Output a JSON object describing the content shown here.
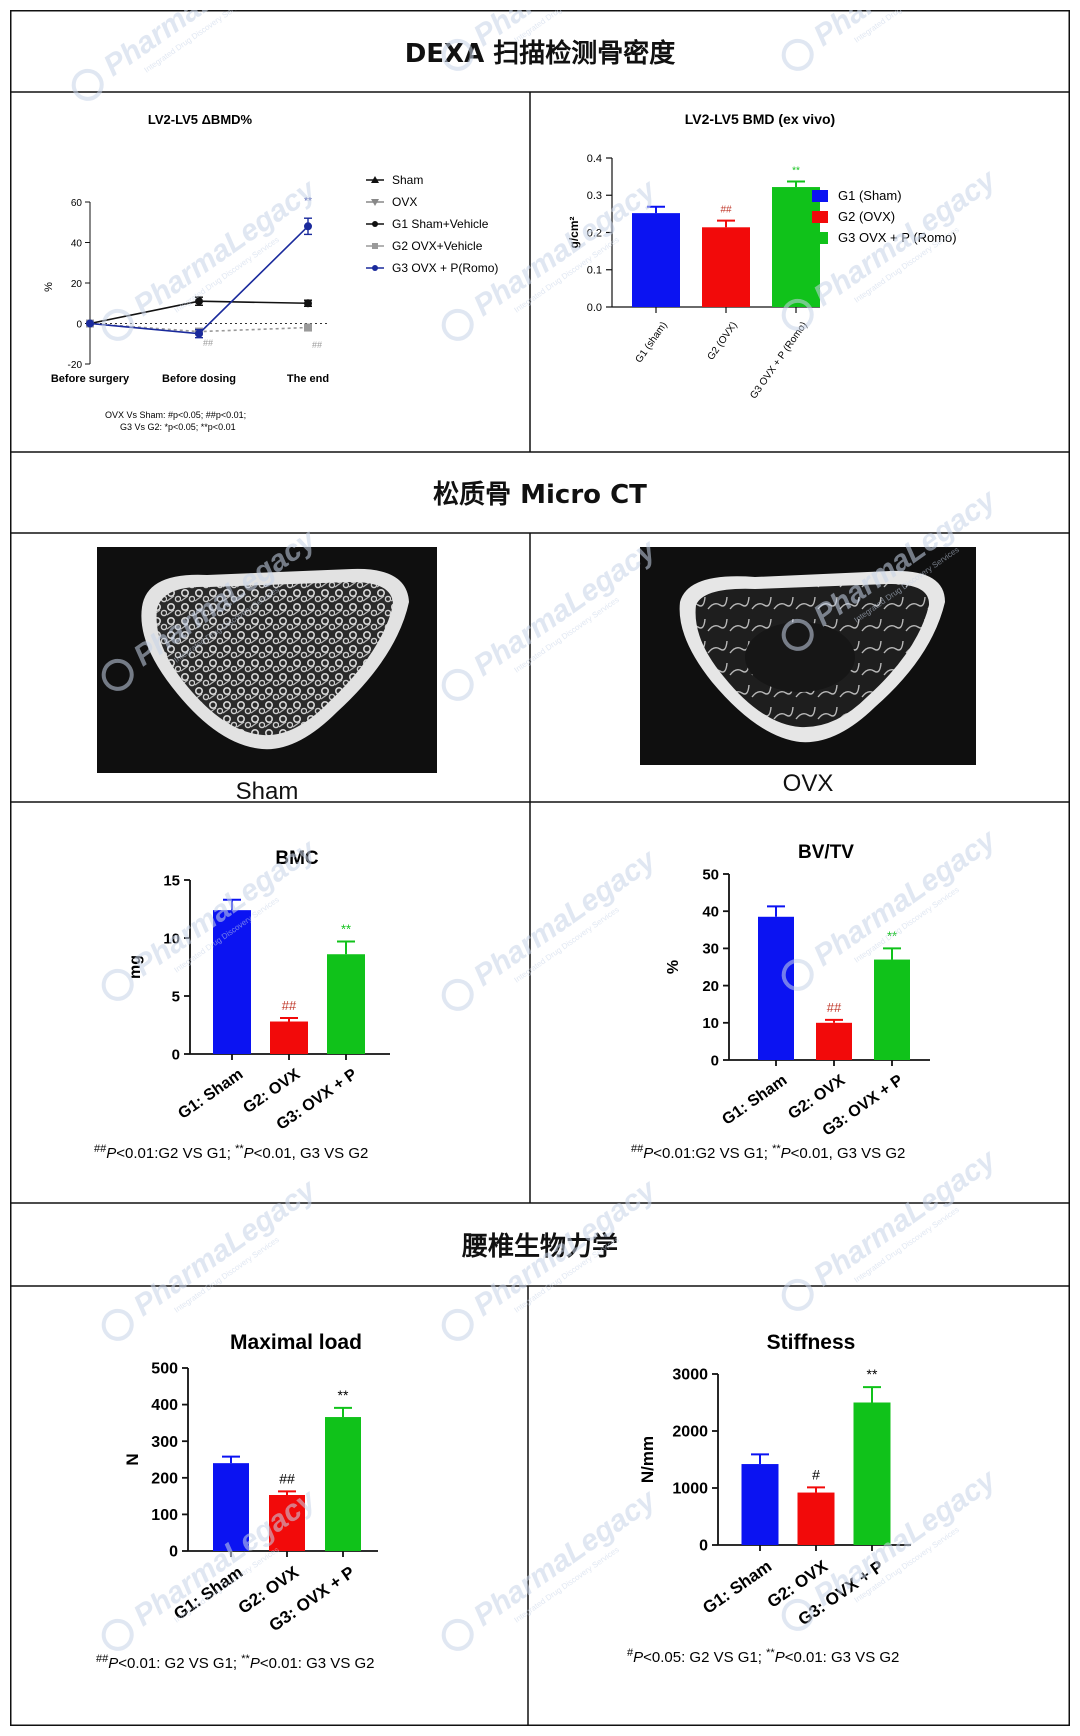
{
  "sections": {
    "dexa_title": "DEXA 扫描检测骨密度",
    "microct_title": "松质骨 Micro CT",
    "biomech_title": "腰椎生物力学"
  },
  "watermark": {
    "text": "PharmaLegacy",
    "sub": "Integrated Drug Discovery Services",
    "color": "#c8d4e8"
  },
  "microct": {
    "left_label": "Sham",
    "right_label": "OVX"
  },
  "chart_data": [
    {
      "id": "lv_delta",
      "type": "line",
      "title": "LV2-LV5 ΔBMD%",
      "ylabel": "%",
      "ylim": [
        -20,
        60
      ],
      "yticks": [
        -20,
        0,
        20,
        40,
        60
      ],
      "categories": [
        "Before surgery",
        "Before dosing",
        "The end"
      ],
      "series": [
        {
          "name": "G1 Sham+Vehicle",
          "color": "#111111",
          "marker": "circle",
          "values": [
            0,
            11,
            10
          ],
          "err": [
            0,
            2,
            1.5
          ],
          "dashed": false
        },
        {
          "name": "G2 OVX+Vehicle",
          "color": "#9a9a9a",
          "marker": "square",
          "values": [
            0,
            -4,
            -2
          ],
          "err": [
            0,
            1.5,
            1
          ],
          "dashed": true
        },
        {
          "name": "G3 OVX + P(Romo)",
          "color": "#1a2a9c",
          "marker": "circle",
          "values": [
            0,
            -5,
            48
          ],
          "err": [
            0,
            2,
            4
          ],
          "dashed": false
        }
      ],
      "legend": [
        "Sham",
        "OVX",
        "G1 Sham+Vehicle",
        "G2 OVX+Vehicle",
        "G3 OVX + P(Romo)"
      ],
      "annotations": [
        {
          "text": "**",
          "color": "#1a2a9c"
        },
        {
          "text": "##",
          "color": "#9a9a9a"
        },
        {
          "text": "##",
          "color": "#9a9a9a"
        }
      ],
      "footnote_1": "OVX Vs Sham: #p<0.05;  ##p<0.01;",
      "footnote_2": "G3 Vs G2: *p<0.05;  **p<0.01"
    },
    {
      "id": "lv_bmd",
      "type": "bar",
      "title": "LV2-LV5 BMD (ex vivo)",
      "ylabel": "g/cm²",
      "ylim": [
        0,
        0.4
      ],
      "yticks": [
        "0.0",
        "0.1",
        "0.2",
        "0.3",
        "0.4"
      ],
      "categories": [
        "G1 (sham)",
        "G2 (OVX)",
        "G3 OVX + P (Romo)"
      ],
      "values": [
        0.252,
        0.214,
        0.322
      ],
      "errors": [
        0.017,
        0.018,
        0.015
      ],
      "colors": [
        "#0b13f2",
        "#f20a0a",
        "#10c21a"
      ],
      "labels": [
        "",
        "##",
        "**"
      ],
      "label_colors": [
        "#000000",
        "#c0392b",
        "#10c21a"
      ],
      "legend": [
        "G1 (Sham)",
        "G2 (OVX)",
        "G3 OVX + P (Romo)"
      ]
    },
    {
      "id": "bmc",
      "type": "bar",
      "title": "BMC",
      "ylabel": "mg",
      "ylim": [
        0,
        15
      ],
      "yticks": [
        "0",
        "5",
        "10",
        "15"
      ],
      "categories": [
        "G1: Sham",
        "G2: OVX",
        "G3: OVX + P"
      ],
      "values": [
        12.4,
        2.8,
        8.6
      ],
      "errors": [
        0.9,
        0.3,
        1.1
      ],
      "colors": [
        "#0b13f2",
        "#f20a0a",
        "#10c21a"
      ],
      "labels": [
        "",
        "##",
        "**"
      ],
      "label_colors": [
        "#000000",
        "#c0392b",
        "#10c21a"
      ],
      "footnote": "##P<0.01:G2 VS G1; **P<0.01, G3 VS G2"
    },
    {
      "id": "bvtv",
      "type": "bar",
      "title": "BV/TV",
      "ylabel": "%",
      "ylim": [
        0,
        50
      ],
      "yticks": [
        "0",
        "10",
        "20",
        "30",
        "40",
        "50"
      ],
      "categories": [
        "G1: Sham",
        "G2: OVX",
        "G3: OVX + P"
      ],
      "values": [
        38.5,
        10,
        27
      ],
      "errors": [
        2.8,
        0.8,
        3
      ],
      "colors": [
        "#0b13f2",
        "#f20a0a",
        "#10c21a"
      ],
      "labels": [
        "",
        "##",
        "**"
      ],
      "label_colors": [
        "#000000",
        "#c0392b",
        "#10c21a"
      ],
      "footnote": "##P<0.01:G2 VS G1; **P<0.01, G3 VS G2"
    },
    {
      "id": "maxload",
      "type": "bar",
      "title": "Maximal load",
      "ylabel": "N",
      "ylim": [
        0,
        500
      ],
      "yticks": [
        "0",
        "100",
        "200",
        "300",
        "400",
        "500"
      ],
      "categories": [
        "G1: Sham",
        "G2: OVX",
        "G3: OVX + P"
      ],
      "values": [
        240,
        153,
        366
      ],
      "errors": [
        18,
        10,
        25
      ],
      "colors": [
        "#0b13f2",
        "#f20a0a",
        "#10c21a"
      ],
      "labels": [
        "",
        "##",
        "**"
      ],
      "label_colors": [
        "#000000",
        "#000000",
        "#000000"
      ],
      "footnote": "##P<0.01: G2 VS G1; **P<0.01: G3 VS G2"
    },
    {
      "id": "stiffness",
      "type": "bar",
      "title": "Stiffness",
      "ylabel": "N/mm",
      "ylim": [
        0,
        3000
      ],
      "yticks": [
        "0",
        "1000",
        "2000",
        "3000"
      ],
      "categories": [
        "G1: Sham",
        "G2: OVX",
        "G3: OVX + P"
      ],
      "values": [
        1420,
        920,
        2500
      ],
      "errors": [
        170,
        90,
        270
      ],
      "colors": [
        "#0b13f2",
        "#f20a0a",
        "#10c21a"
      ],
      "labels": [
        "",
        "#",
        "**"
      ],
      "label_colors": [
        "#000000",
        "#000000",
        "#000000"
      ],
      "footnote": "#P<0.05: G2 VS G1; **P<0.01: G3 VS G2"
    }
  ]
}
